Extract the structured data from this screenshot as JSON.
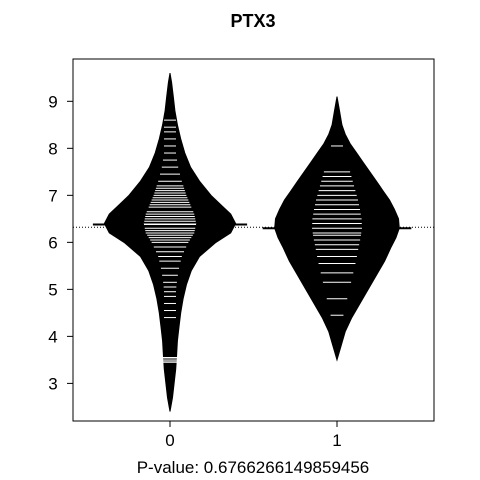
{
  "chart_data": {
    "type": "beanplot",
    "title": "PTX3",
    "xlabel": "P-value: 0.6766266149859456",
    "ylabel": "",
    "categories": [
      "0",
      "1"
    ],
    "ylim": [
      2.2,
      9.9
    ],
    "yticks": [
      3,
      4,
      5,
      6,
      7,
      8,
      9
    ],
    "overall_mean": 6.32,
    "grid": false,
    "colors": {
      "bean_fill": "#000000",
      "observation_lines": "#ffffff",
      "axes": "#000000",
      "background": "#ffffff"
    },
    "series": [
      {
        "category": "0",
        "mean": 6.38,
        "range": [
          2.4,
          9.6
        ],
        "density_profile": [
          [
            2.4,
            0.0
          ],
          [
            2.7,
            0.03
          ],
          [
            3.0,
            0.05
          ],
          [
            3.3,
            0.07
          ],
          [
            3.6,
            0.08
          ],
          [
            3.9,
            0.09
          ],
          [
            4.2,
            0.11
          ],
          [
            4.5,
            0.13
          ],
          [
            4.8,
            0.16
          ],
          [
            5.1,
            0.2
          ],
          [
            5.4,
            0.26
          ],
          [
            5.7,
            0.36
          ],
          [
            6.0,
            0.56
          ],
          [
            6.2,
            0.74
          ],
          [
            6.4,
            0.8
          ],
          [
            6.6,
            0.74
          ],
          [
            6.8,
            0.62
          ],
          [
            7.0,
            0.5
          ],
          [
            7.3,
            0.36
          ],
          [
            7.6,
            0.25
          ],
          [
            7.9,
            0.18
          ],
          [
            8.2,
            0.13
          ],
          [
            8.5,
            0.09
          ],
          [
            8.8,
            0.06
          ],
          [
            9.1,
            0.04
          ],
          [
            9.4,
            0.02
          ],
          [
            9.6,
            0.0
          ]
        ],
        "observations": [
          3.45,
          3.48,
          3.52,
          3.55,
          4.4,
          4.55,
          4.7,
          4.85,
          4.95,
          5.05,
          5.15,
          5.3,
          5.45,
          5.6,
          5.7,
          5.8,
          5.9,
          6.0,
          6.05,
          6.1,
          6.15,
          6.2,
          6.25,
          6.3,
          6.4,
          6.45,
          6.5,
          6.55,
          6.6,
          6.65,
          6.75,
          6.8,
          6.85,
          6.9,
          6.95,
          7.0,
          7.05,
          7.1,
          7.15,
          7.2,
          7.3,
          7.45,
          7.6,
          7.75,
          7.9,
          8.05,
          8.2,
          8.35,
          8.45,
          8.6
        ]
      },
      {
        "category": "1",
        "mean": 6.3,
        "range": [
          3.5,
          9.1
        ],
        "density_profile": [
          [
            3.5,
            0.0
          ],
          [
            3.8,
            0.05
          ],
          [
            4.1,
            0.1
          ],
          [
            4.4,
            0.18
          ],
          [
            4.7,
            0.28
          ],
          [
            5.0,
            0.38
          ],
          [
            5.3,
            0.48
          ],
          [
            5.6,
            0.58
          ],
          [
            5.9,
            0.66
          ],
          [
            6.1,
            0.72
          ],
          [
            6.3,
            0.76
          ],
          [
            6.5,
            0.75
          ],
          [
            6.7,
            0.7
          ],
          [
            6.9,
            0.64
          ],
          [
            7.1,
            0.56
          ],
          [
            7.3,
            0.48
          ],
          [
            7.5,
            0.4
          ],
          [
            7.7,
            0.32
          ],
          [
            7.9,
            0.24
          ],
          [
            8.1,
            0.16
          ],
          [
            8.3,
            0.1
          ],
          [
            8.5,
            0.06
          ],
          [
            8.8,
            0.03
          ],
          [
            9.1,
            0.0
          ]
        ],
        "observations": [
          4.45,
          4.8,
          5.15,
          5.35,
          5.55,
          5.7,
          5.85,
          5.95,
          6.05,
          6.15,
          6.2,
          6.3,
          6.4,
          6.5,
          6.6,
          6.7,
          6.8,
          6.9,
          7.0,
          7.1,
          7.2,
          7.3,
          7.4,
          7.5,
          8.05
        ]
      }
    ]
  }
}
